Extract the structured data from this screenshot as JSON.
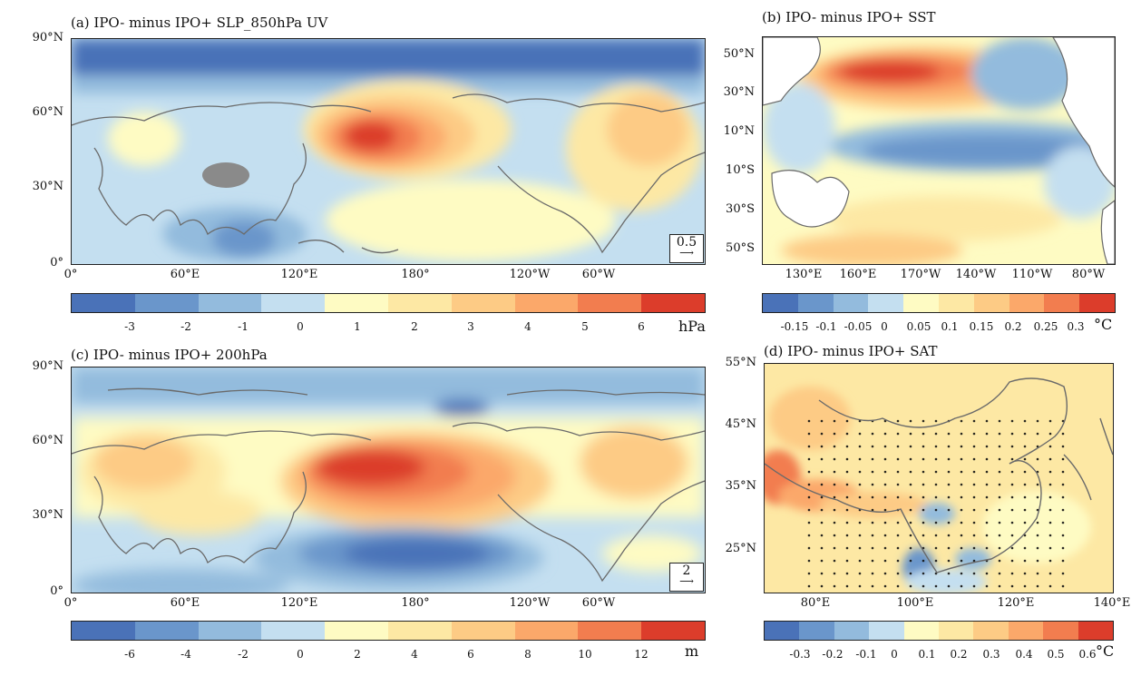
{
  "panels": {
    "a": {
      "title": "(a) IPO- minus IPO+ SLP_850hPa UV",
      "yticks": [
        "90°N",
        "60°N",
        "30°N",
        "0°"
      ],
      "xticks": [
        "0°",
        "60°E",
        "120°E",
        "180°",
        "120°W",
        "60°W"
      ],
      "ref_vector": "0.5",
      "colorbar": {
        "labels": [
          "-3",
          "-2",
          "-1",
          "0",
          "1",
          "2",
          "3",
          "4",
          "5",
          "6"
        ],
        "unit": "hPa"
      }
    },
    "b": {
      "title": "(b) IPO- minus IPO+ SST",
      "yticks": [
        "50°N",
        "30°N",
        "10°N",
        "10°S",
        "30°S",
        "50°S"
      ],
      "xticks": [
        "130°E",
        "160°E",
        "170°W",
        "140°W",
        "110°W",
        "80°W"
      ],
      "colorbar": {
        "labels": [
          "-0.15",
          "-0.1",
          "-0.05",
          "0",
          "0.05",
          "0.1",
          "0.15",
          "0.2",
          "0.25",
          "0.3"
        ],
        "unit": "°C"
      }
    },
    "c": {
      "title": "(c) IPO- minus IPO+ 200hPa",
      "yticks": [
        "90°N",
        "60°N",
        "30°N",
        "0°"
      ],
      "xticks": [
        "0°",
        "60°E",
        "120°E",
        "180°",
        "120°W",
        "60°W"
      ],
      "ref_vector": "2",
      "colorbar": {
        "labels": [
          "-6",
          "-4",
          "-2",
          "0",
          "2",
          "4",
          "6",
          "8",
          "10",
          "12"
        ],
        "unit": "m"
      }
    },
    "d": {
      "title": "(d) IPO- minus IPO+ SAT",
      "yticks": [
        "55°N",
        "45°N",
        "35°N",
        "25°N"
      ],
      "xticks": [
        "80°E",
        "100°E",
        "120°E",
        "140°E"
      ],
      "colorbar": {
        "labels": [
          "-0.3",
          "-0.2",
          "-0.1",
          "0",
          "0.1",
          "0.2",
          "0.3",
          "0.4",
          "0.5",
          "0.6"
        ],
        "unit": "°C"
      }
    }
  },
  "colors": {
    "scale": [
      "#4a72b8",
      "#6a96cb",
      "#93bbdd",
      "#c4dff0",
      "#fefbc3",
      "#fde8a4",
      "#fdcb85",
      "#fba86a",
      "#f27d4f",
      "#dc3d2b"
    ],
    "land_grey": "#8a8a8a",
    "coast": "#6a6a6a"
  }
}
